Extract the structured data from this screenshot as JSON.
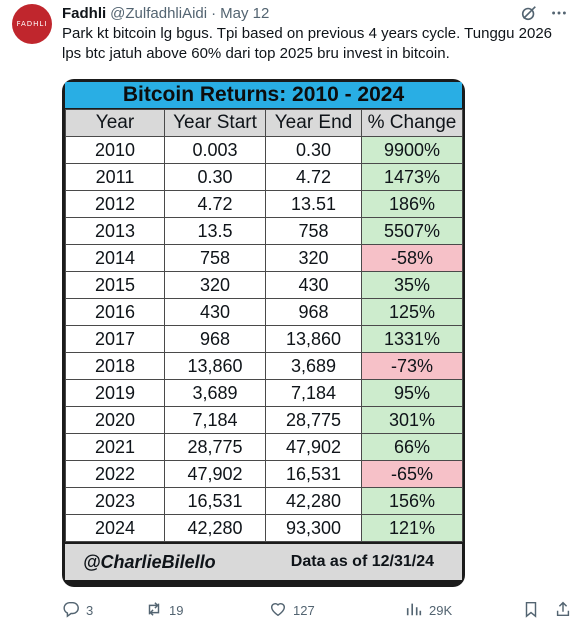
{
  "author": {
    "name": "Fadhli",
    "handle": "@ZulfadhliAidi",
    "date": "May 12",
    "avatar_text": "FADHLI"
  },
  "tweet": {
    "line1": "Park kt bitcoin lg bgus. Tpi based on previous 4 years cycle. Tunggu 2026",
    "line2": "lps btc jatuh above 60% dari top 2025 bru invest in bitcoin."
  },
  "table": {
    "title": "Bitcoin Returns: 2010 - 2024",
    "headers": [
      "Year",
      "Year Start",
      "Year End",
      "% Change"
    ],
    "rows": [
      [
        "2010",
        "0.003",
        "0.30",
        "9900%"
      ],
      [
        "2011",
        "0.30",
        "4.72",
        "1473%"
      ],
      [
        "2012",
        "4.72",
        "13.51",
        "186%"
      ],
      [
        "2013",
        "13.5",
        "758",
        "5507%"
      ],
      [
        "2014",
        "758",
        "320",
        "-58%"
      ],
      [
        "2015",
        "320",
        "430",
        "35%"
      ],
      [
        "2016",
        "430",
        "968",
        "125%"
      ],
      [
        "2017",
        "968",
        "13,860",
        "1331%"
      ],
      [
        "2018",
        "13,860",
        "3,689",
        "-73%"
      ],
      [
        "2019",
        "3,689",
        "7,184",
        "95%"
      ],
      [
        "2020",
        "7,184",
        "28,775",
        "301%"
      ],
      [
        "2021",
        "28,775",
        "47,902",
        "66%"
      ],
      [
        "2022",
        "47,902",
        "16,531",
        "-65%"
      ],
      [
        "2023",
        "16,531",
        "42,280",
        "156%"
      ],
      [
        "2024",
        "42,280",
        "93,300",
        "121%"
      ]
    ],
    "footer_author": "@CharlieBilello",
    "footer_date": "Data as of 12/31/24",
    "colors": {
      "positive": "#cdeccd",
      "negative": "#f6c1c8",
      "title_bg": "#29aee4"
    }
  },
  "actions": {
    "replies": "3",
    "retweets": "19",
    "likes": "127",
    "views": "29K"
  },
  "icons": [
    "grok-icon",
    "more-icon",
    "reply-icon",
    "retweet-icon",
    "like-icon",
    "views-icon",
    "bookmark-icon",
    "share-icon"
  ]
}
